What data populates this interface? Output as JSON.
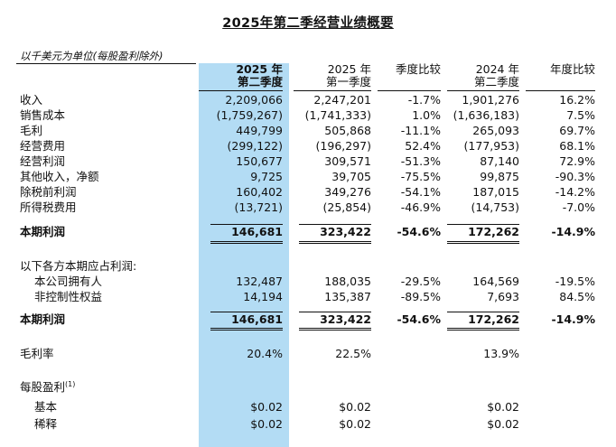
{
  "title": "2025年第二季经营业绩概要",
  "unit_note": "以千美元为单位(每股盈利除外)",
  "columns": [
    {
      "line1": "2025 年",
      "line2": "第二季度"
    },
    {
      "line1": "2025 年",
      "line2": "第一季度"
    },
    {
      "line1": "季度比较",
      "line2": ""
    },
    {
      "line1": "2024 年",
      "line2": "第二季度"
    },
    {
      "line1": "年度比较",
      "line2": ""
    }
  ],
  "rows": [
    {
      "label": "收入",
      "values": [
        "2,209,066",
        "2,247,201",
        "-1.7%",
        "1,901,276",
        "16.2%"
      ]
    },
    {
      "label": "销售成本",
      "values": [
        "(1,759,267)",
        "(1,741,333)",
        "1.0%",
        "(1,636,183)",
        "7.5%"
      ]
    },
    {
      "label": "毛利",
      "values": [
        "449,799",
        "505,868",
        "-11.1%",
        "265,093",
        "69.7%"
      ]
    },
    {
      "label": "经营费用",
      "values": [
        "(299,122)",
        "(196,297)",
        "52.4%",
        "(177,953)",
        "68.1%"
      ]
    },
    {
      "label": "经营利润",
      "values": [
        "150,677",
        "309,571",
        "-51.3%",
        "87,140",
        "72.9%"
      ]
    },
    {
      "label": "其他收入，净额",
      "values": [
        "9,725",
        "39,705",
        "-75.5%",
        "99,875",
        "-90.3%"
      ]
    },
    {
      "label": "除税前利润",
      "values": [
        "160,402",
        "349,276",
        "-54.1%",
        "187,015",
        "-14.2%"
      ]
    },
    {
      "label": "所得税费用",
      "values": [
        "(13,721)",
        "(25,854)",
        "-46.9%",
        "(14,753)",
        "-7.0%"
      ]
    },
    {
      "label": "本期利润",
      "values": [
        "146,681",
        "323,422",
        "-54.6%",
        "172,262",
        "-14.9%"
      ]
    },
    {
      "label": "以下各方本期应占利润:",
      "values": [
        "",
        "",
        "",
        "",
        ""
      ]
    },
    {
      "label": "本公司拥有人",
      "values": [
        "132,487",
        "188,035",
        "-29.5%",
        "164,569",
        "-19.5%"
      ]
    },
    {
      "label": "非控制性权益",
      "values": [
        "14,194",
        "135,387",
        "-89.5%",
        "7,693",
        "84.5%"
      ]
    },
    {
      "label": "本期利润",
      "values": [
        "146,681",
        "323,422",
        "-54.6%",
        "172,262",
        "-14.9%"
      ]
    },
    {
      "label": "毛利率",
      "values": [
        "20.4%",
        "22.5%",
        "",
        "13.9%",
        ""
      ]
    },
    {
      "label": "每股盈利",
      "footnote": "(1)",
      "values": [
        "",
        "",
        "",
        "",
        ""
      ]
    },
    {
      "label": "基本",
      "values": [
        "$0.02",
        "$0.02",
        "",
        "$0.02",
        ""
      ]
    },
    {
      "label": "稀释",
      "values": [
        "$0.02",
        "$0.02",
        "",
        "$0.02",
        ""
      ]
    }
  ]
}
